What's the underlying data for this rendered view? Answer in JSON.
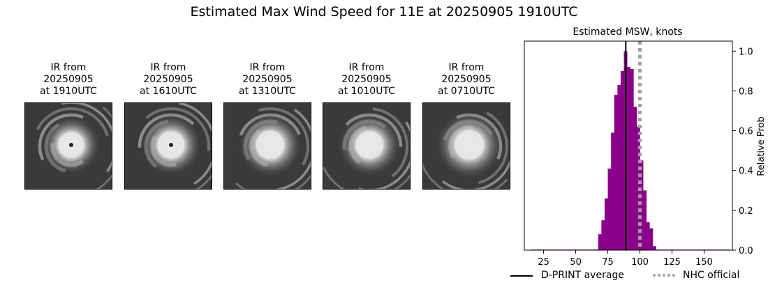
{
  "figure": {
    "title": "Estimated Max Wind Speed for 11E at 20250905 1910UTC"
  },
  "panels": [
    {
      "caption": "IR from\n20250905\nat 1910UTC",
      "eye": true,
      "core": 0.55
    },
    {
      "caption": "IR from\n20250905\nat 1610UTC",
      "eye": true,
      "core": 0.65
    },
    {
      "caption": "IR from\n20250905\nat 1310UTC",
      "eye": false,
      "core": 0.75
    },
    {
      "caption": "IR from\n20250905\nat 1010UTC",
      "eye": false,
      "core": 0.7
    },
    {
      "caption": "IR from\n20250905\nat 0710UTC",
      "eye": false,
      "core": 0.85
    }
  ],
  "chart_data": {
    "type": "bar",
    "title": "Estimated MSW, knots",
    "xlabel": "",
    "ylabel": "Relative Prob",
    "xlim": [
      10,
      172
    ],
    "ylim": [
      0,
      1.05
    ],
    "x_ticks": [
      25,
      50,
      75,
      100,
      125,
      150
    ],
    "y_ticks": [
      0.0,
      0.2,
      0.4,
      0.6,
      0.8,
      1.0
    ],
    "y_tick_labels": [
      "0.0",
      "0.2",
      "0.4",
      "0.6",
      "0.8",
      "1.0"
    ],
    "y_axis_side": "right",
    "bin_width": 2.5,
    "bin_starts": [
      15,
      17.5,
      20,
      22.5,
      25,
      27.5,
      30,
      32.5,
      35,
      37.5,
      40,
      42.5,
      45,
      47.5,
      50,
      52.5,
      55,
      57.5,
      60,
      62.5,
      65,
      67.5,
      70,
      72.5,
      75,
      77.5,
      80,
      82.5,
      85,
      87.5,
      90,
      92.5,
      95,
      97.5,
      100,
      102.5,
      105,
      107.5,
      110,
      112.5,
      115,
      117.5,
      120,
      122.5,
      125,
      127.5,
      130,
      132.5,
      135,
      137.5,
      140,
      142.5,
      145,
      147.5,
      150,
      152.5,
      155,
      157.5,
      160,
      162.5,
      165,
      167.5
    ],
    "values": [
      0.003,
      0.003,
      0.003,
      0.003,
      0.003,
      0.003,
      0.003,
      0.003,
      0.003,
      0.003,
      0.003,
      0.003,
      0.003,
      0.003,
      0.003,
      0.003,
      0.003,
      0.003,
      0.003,
      0.003,
      0.003,
      0.08,
      0.15,
      0.26,
      0.41,
      0.59,
      0.78,
      0.83,
      0.9,
      1.0,
      0.92,
      0.91,
      0.72,
      0.62,
      0.45,
      0.3,
      0.14,
      0.11,
      0.02,
      0.003,
      0.003,
      0.003,
      0.003,
      0.003,
      0.003,
      0.003,
      0.003,
      0.003,
      0.003,
      0.003,
      0.003,
      0.003,
      0.003,
      0.003,
      0.003,
      0.003,
      0.003,
      0.003,
      0.003,
      0.003,
      0.003,
      0.003
    ],
    "bar_color": "#8b008b",
    "dprint_average": 89,
    "nhc_official": 100,
    "legend": [
      {
        "label": "D-PRINT average",
        "color": "#000000",
        "style": "solid"
      },
      {
        "label": "NHC official",
        "color": "#a0a0a0",
        "style": "dotted"
      }
    ],
    "legend_placement": "bottom"
  }
}
